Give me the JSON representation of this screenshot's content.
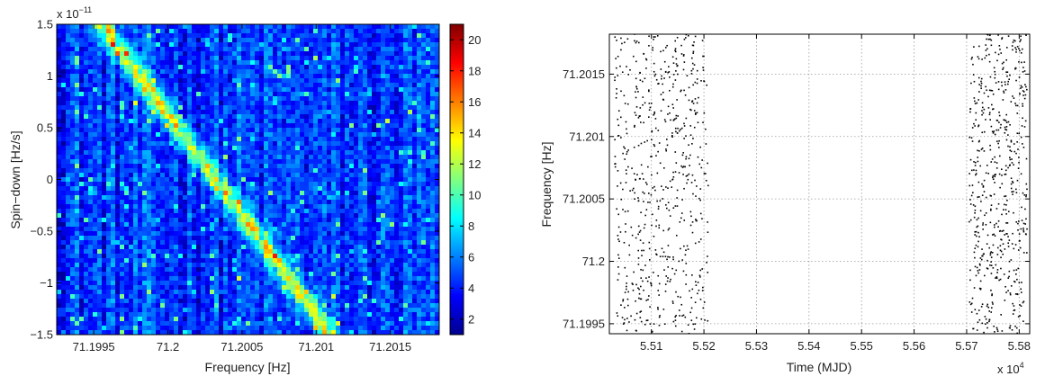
{
  "chart_data": [
    {
      "type": "heatmap",
      "xlabel": "Frequency [Hz]",
      "ylabel": "Spin−down [Hz/s]",
      "y_multiplier": "x 10",
      "y_exponent": "−11",
      "xlim": [
        71.19925,
        71.20183
      ],
      "ylim": [
        -1.5,
        1.5
      ],
      "x_ticks": [
        71.1995,
        71.2,
        71.2005,
        71.201,
        71.2015
      ],
      "x_tick_labels": [
        "71.1995",
        "71.2",
        "71.2005",
        "71.201",
        "71.2015"
      ],
      "y_ticks": [
        -1.5,
        -1,
        -0.5,
        0,
        0.5,
        1,
        1.5
      ],
      "y_tick_labels": [
        "−1.5",
        "−1",
        "−0.5",
        "0",
        "0.5",
        "1",
        "1.5"
      ],
      "colorbar": {
        "range": [
          1,
          21
        ],
        "ticks": [
          2,
          4,
          6,
          8,
          10,
          12,
          14,
          16,
          18,
          20
        ],
        "tick_labels": [
          "2",
          "4",
          "6",
          "8",
          "10",
          "12",
          "14",
          "16",
          "18",
          "20"
        ],
        "colormap": "jet"
      },
      "ridge": {
        "start": [
          71.19955,
          1.5
        ],
        "end": [
          71.2011,
          -1.5
        ],
        "peak_value": 15
      },
      "background_value": 4.5
    },
    {
      "type": "scatter",
      "xlabel": "Time (MJD)",
      "ylabel": "Frequency [Hz]",
      "x_multiplier": "x 10",
      "x_exponent": "4",
      "xlim": [
        5.502,
        5.582
      ],
      "ylim": [
        71.19942,
        71.20182
      ],
      "x_ticks": [
        5.51,
        5.52,
        5.53,
        5.54,
        5.55,
        5.56,
        5.57,
        5.58
      ],
      "x_tick_labels": [
        "5.51",
        "5.52",
        "5.53",
        "5.54",
        "5.55",
        "5.56",
        "5.57",
        "5.58"
      ],
      "y_ticks": [
        71.1995,
        71.2,
        71.2005,
        71.201,
        71.2015
      ],
      "y_tick_labels": [
        "71.1995",
        "71.2",
        "71.2005",
        "71.201",
        "71.2015"
      ],
      "grid": true,
      "marker_color": "#000000",
      "clusters": [
        {
          "x_range": [
            5.503,
            5.5208
          ],
          "count": 620
        },
        {
          "x_range": [
            5.5705,
            5.5815
          ],
          "count": 560
        }
      ]
    }
  ]
}
